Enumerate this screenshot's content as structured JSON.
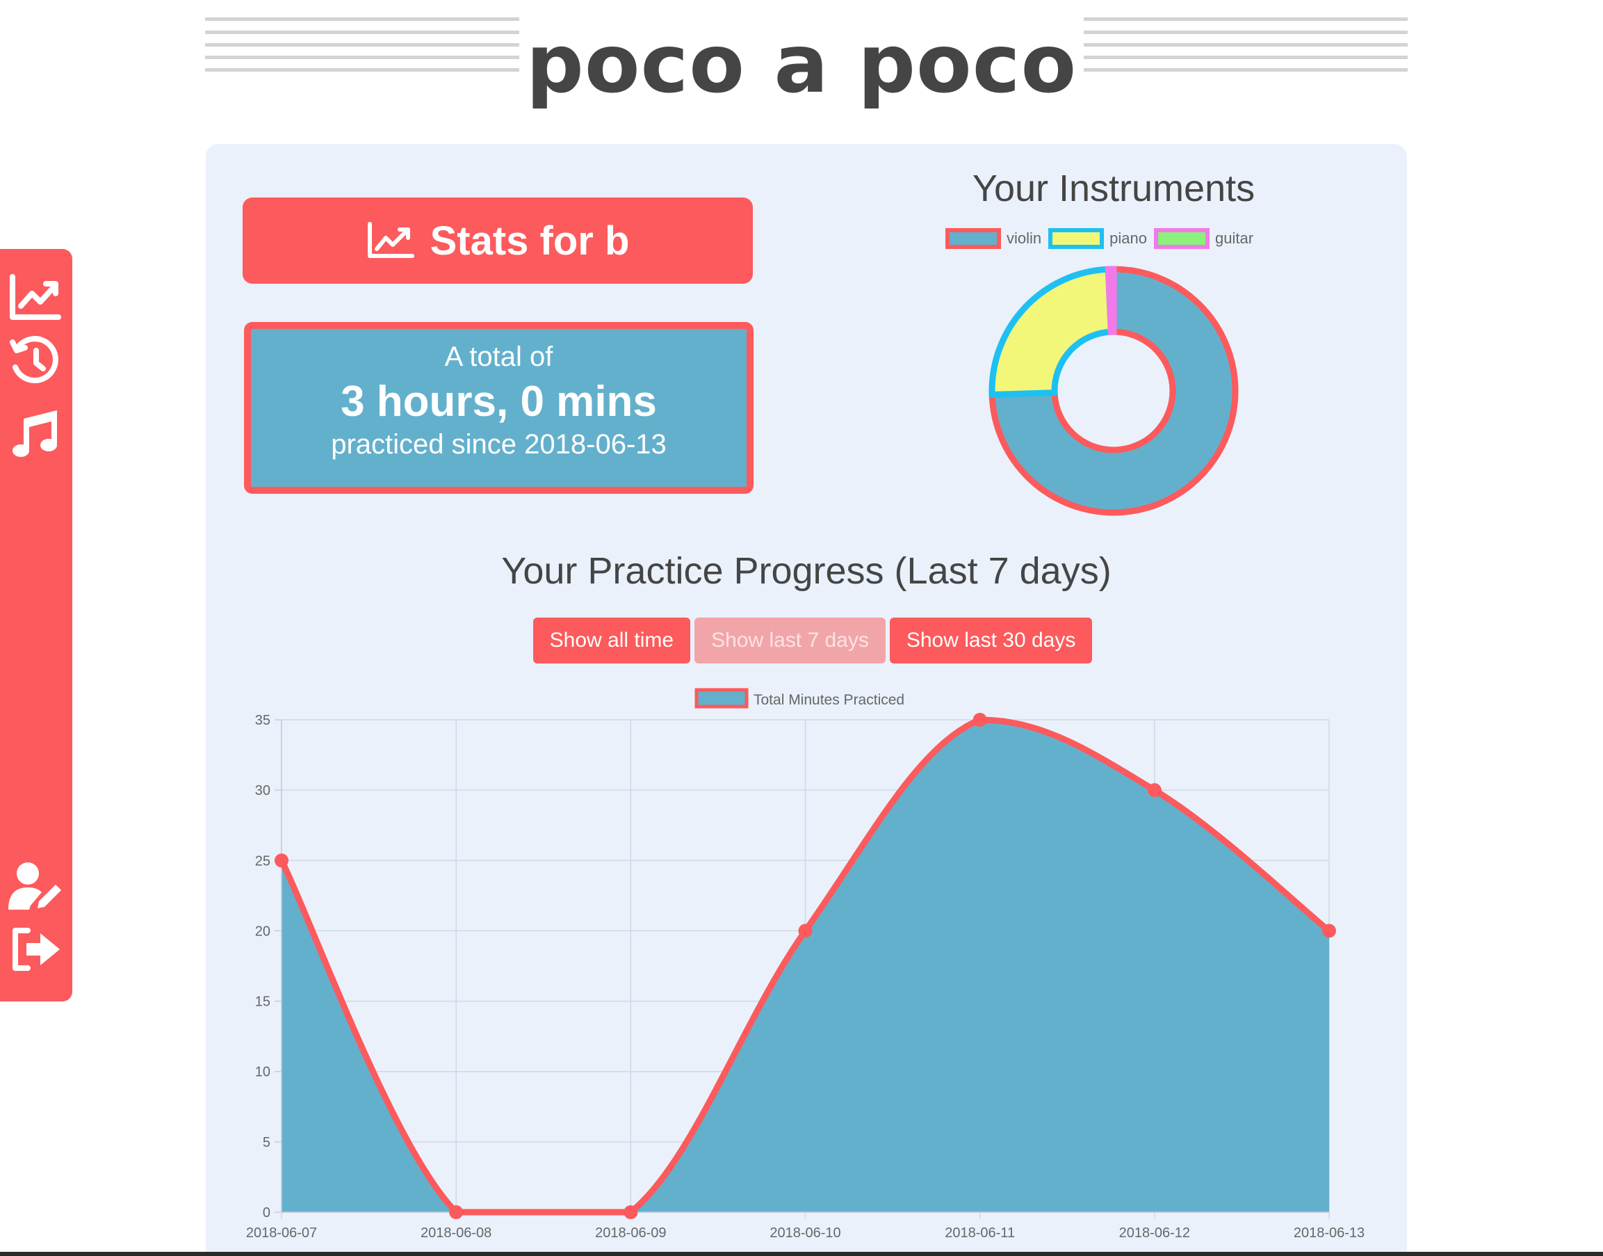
{
  "header": {
    "logo": "poco a poco"
  },
  "sidebar": {
    "icons": [
      "stats-icon",
      "history-icon",
      "music-note-icon",
      "edit-profile-icon",
      "sign-out-icon"
    ]
  },
  "stats": {
    "button_label": "Stats for b",
    "total_line1": "A total of",
    "total_line2": "3 hours, 0 mins",
    "total_line3": "practiced since 2018-06-13"
  },
  "instruments": {
    "title": "Your Instruments",
    "legend": [
      {
        "label": "violin",
        "fill": "#63b0cd",
        "border": "#fc5a5c"
      },
      {
        "label": "piano",
        "fill": "#f2f77a",
        "border": "#1ec0f2"
      },
      {
        "label": "guitar",
        "fill": "#8af27a",
        "border": "#f27ae8"
      }
    ]
  },
  "progress": {
    "title": "Your Practice Progress (Last 7 days)",
    "buttons": [
      {
        "label": "Show all time",
        "active": false
      },
      {
        "label": "Show last 7 days",
        "active": true
      },
      {
        "label": "Show last 30 days",
        "active": false
      }
    ]
  },
  "colors": {
    "accent": "#fc5a5c",
    "fill": "#63b0cd",
    "panel": "#eaf1fb",
    "text": "#454545"
  },
  "chart_data": [
    {
      "type": "pie",
      "categories": [
        "violin",
        "piano",
        "guitar"
      ],
      "values": [
        74.5,
        24.8,
        0.7
      ],
      "fill_colors": [
        "#63b0cd",
        "#f2f77a",
        "#8af27a"
      ],
      "border_colors": [
        "#fc5a5c",
        "#1ec0f2",
        "#f27ae8"
      ],
      "legend": "top"
    },
    {
      "type": "area",
      "x": [
        "2018-06-07",
        "2018-06-08",
        "2018-06-09",
        "2018-06-10",
        "2018-06-11",
        "2018-06-12",
        "2018-06-13"
      ],
      "series": [
        {
          "name": "Total Minutes Practiced",
          "values": [
            25,
            0,
            0,
            20,
            35,
            30,
            20
          ]
        }
      ],
      "ylim": [
        0,
        35
      ],
      "yticks": [
        0,
        5,
        10,
        15,
        20,
        25,
        30,
        35
      ],
      "grid": true,
      "legend": "top",
      "line_color": "#fc5a5c",
      "fill_color": "#63b0cd"
    }
  ]
}
